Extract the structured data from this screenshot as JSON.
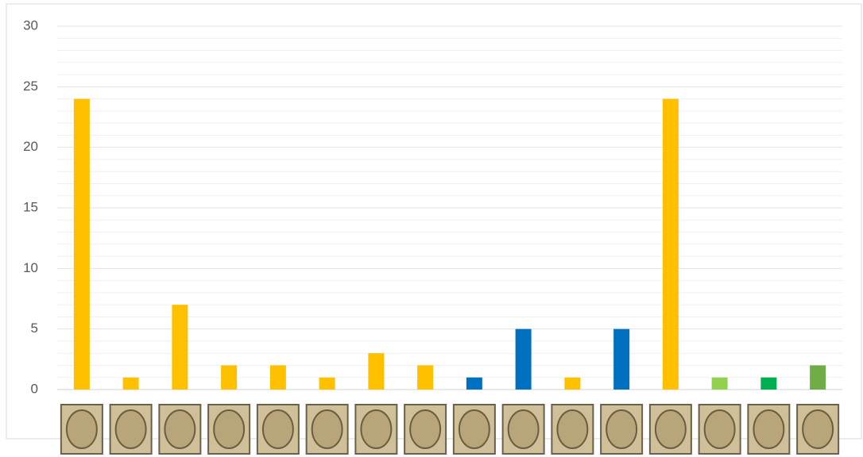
{
  "chart_data": {
    "type": "bar",
    "categories": [
      null,
      null,
      null,
      null,
      null,
      null,
      null,
      null,
      null,
      null,
      null,
      null,
      null,
      null,
      null,
      null
    ],
    "values": [
      24,
      1,
      7,
      2,
      2,
      1,
      3,
      2,
      1,
      5,
      1,
      5,
      24,
      1,
      1,
      2
    ],
    "colors": [
      "#FFC000",
      "#FFC000",
      "#FFC000",
      "#FFC000",
      "#FFC000",
      "#FFC000",
      "#FFC000",
      "#FFC000",
      "#0070C0",
      "#0070C0",
      "#FFC000",
      "#0070C0",
      "#FFC000",
      "#92D050",
      "#00B050",
      "#70AD47"
    ],
    "ylim": [
      0,
      30
    ],
    "yticks": [
      0,
      5,
      10,
      15,
      20,
      25,
      30
    ],
    "yminorticks": [
      1,
      2,
      3,
      4,
      6,
      7,
      8,
      9,
      11,
      12,
      13,
      14,
      16,
      17,
      18,
      19,
      21,
      22,
      23,
      24,
      26,
      27,
      28,
      29
    ],
    "grid": true
  }
}
